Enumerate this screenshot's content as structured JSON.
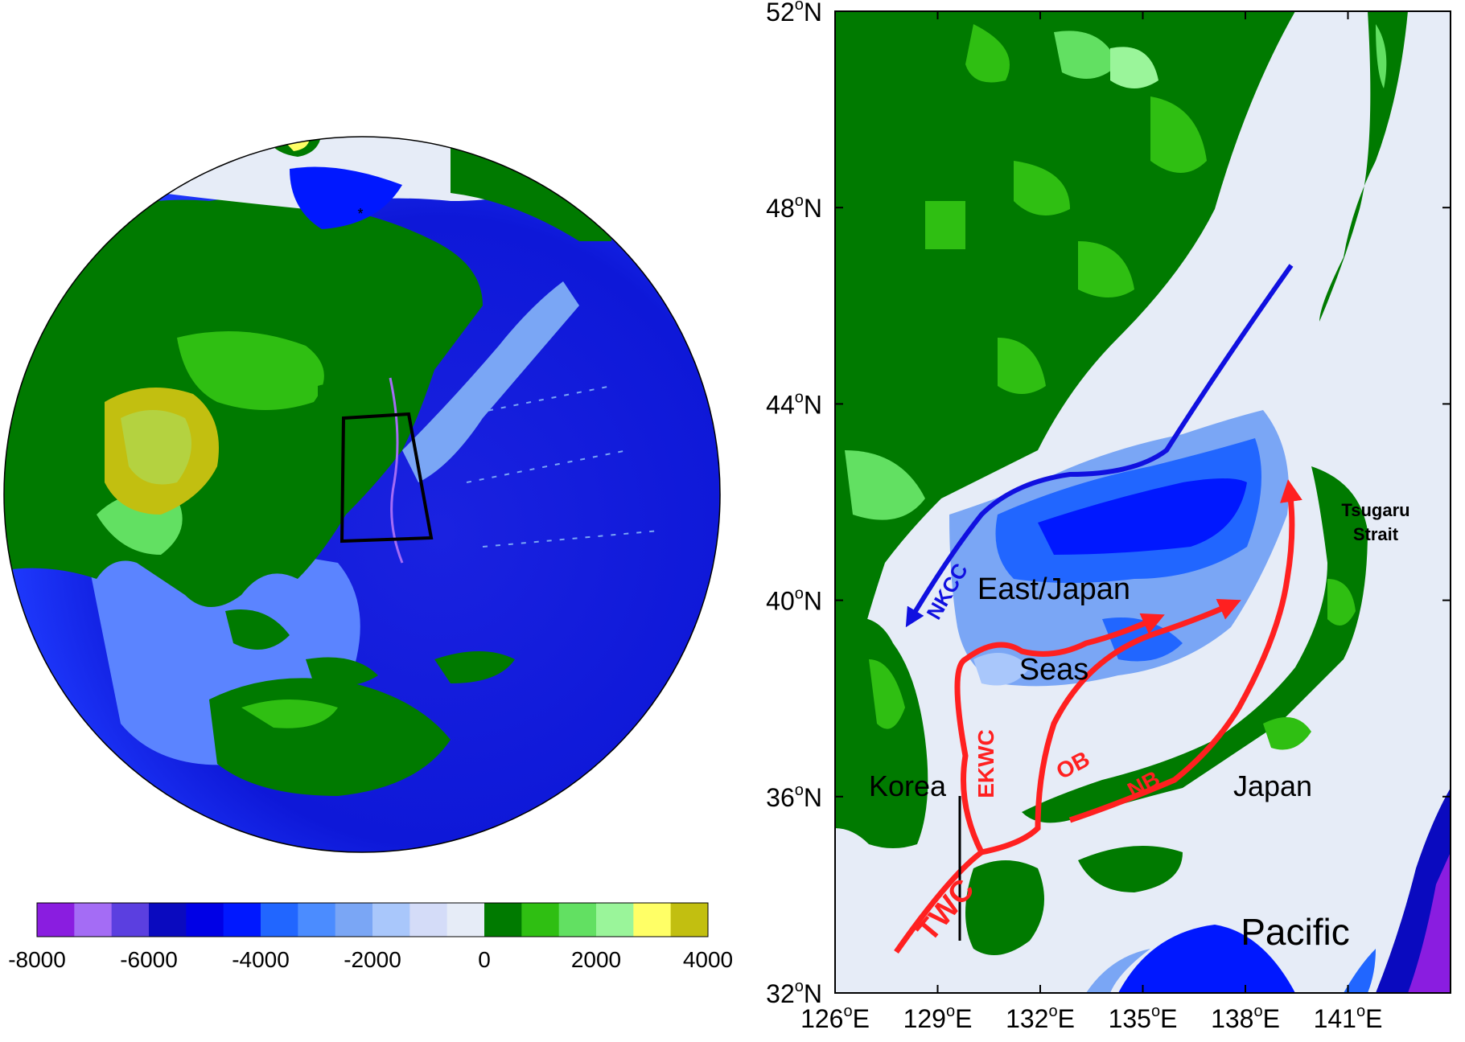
{
  "legend": {
    "tick_labels": [
      "-8000",
      "-6000",
      "-4000",
      "-2000",
      "0",
      "2000",
      "4000"
    ],
    "colors": [
      "#8a1de0",
      "#a46cf5",
      "#5b3fe0",
      "#0a0abf",
      "#0000e6",
      "#0018ff",
      "#2166ff",
      "#4b8cff",
      "#7aa6f5",
      "#a9c7fb",
      "#d4dcf8",
      "#e6ecf7",
      "#007a00",
      "#2fbf12",
      "#62e062",
      "#9af59a",
      "#ffff66",
      "#c2bf10"
    ]
  },
  "map": {
    "lat_labels": [
      "32",
      "36",
      "40",
      "44",
      "48",
      "52"
    ],
    "lon_labels": [
      "126",
      "129",
      "132",
      "135",
      "138",
      "141"
    ],
    "lat_suffix": "N",
    "lon_suffix": "E",
    "degree": "o",
    "place_labels": {
      "east_japan": "East/Japan",
      "seas": "Seas",
      "korea": "Korea",
      "japan": "Japan",
      "pacific": "Pacific",
      "tsugaru_1": "Tsugaru",
      "tsugaru_2": "Strait"
    },
    "current_labels": {
      "nkcc": "NKCC",
      "ekwc": "EKWC",
      "ob": "OB",
      "nb": "NB",
      "twc": "TWC"
    },
    "colors": {
      "warm_current": "#ff2020",
      "cold_current": "#1010e0",
      "land": "#007a00"
    }
  }
}
